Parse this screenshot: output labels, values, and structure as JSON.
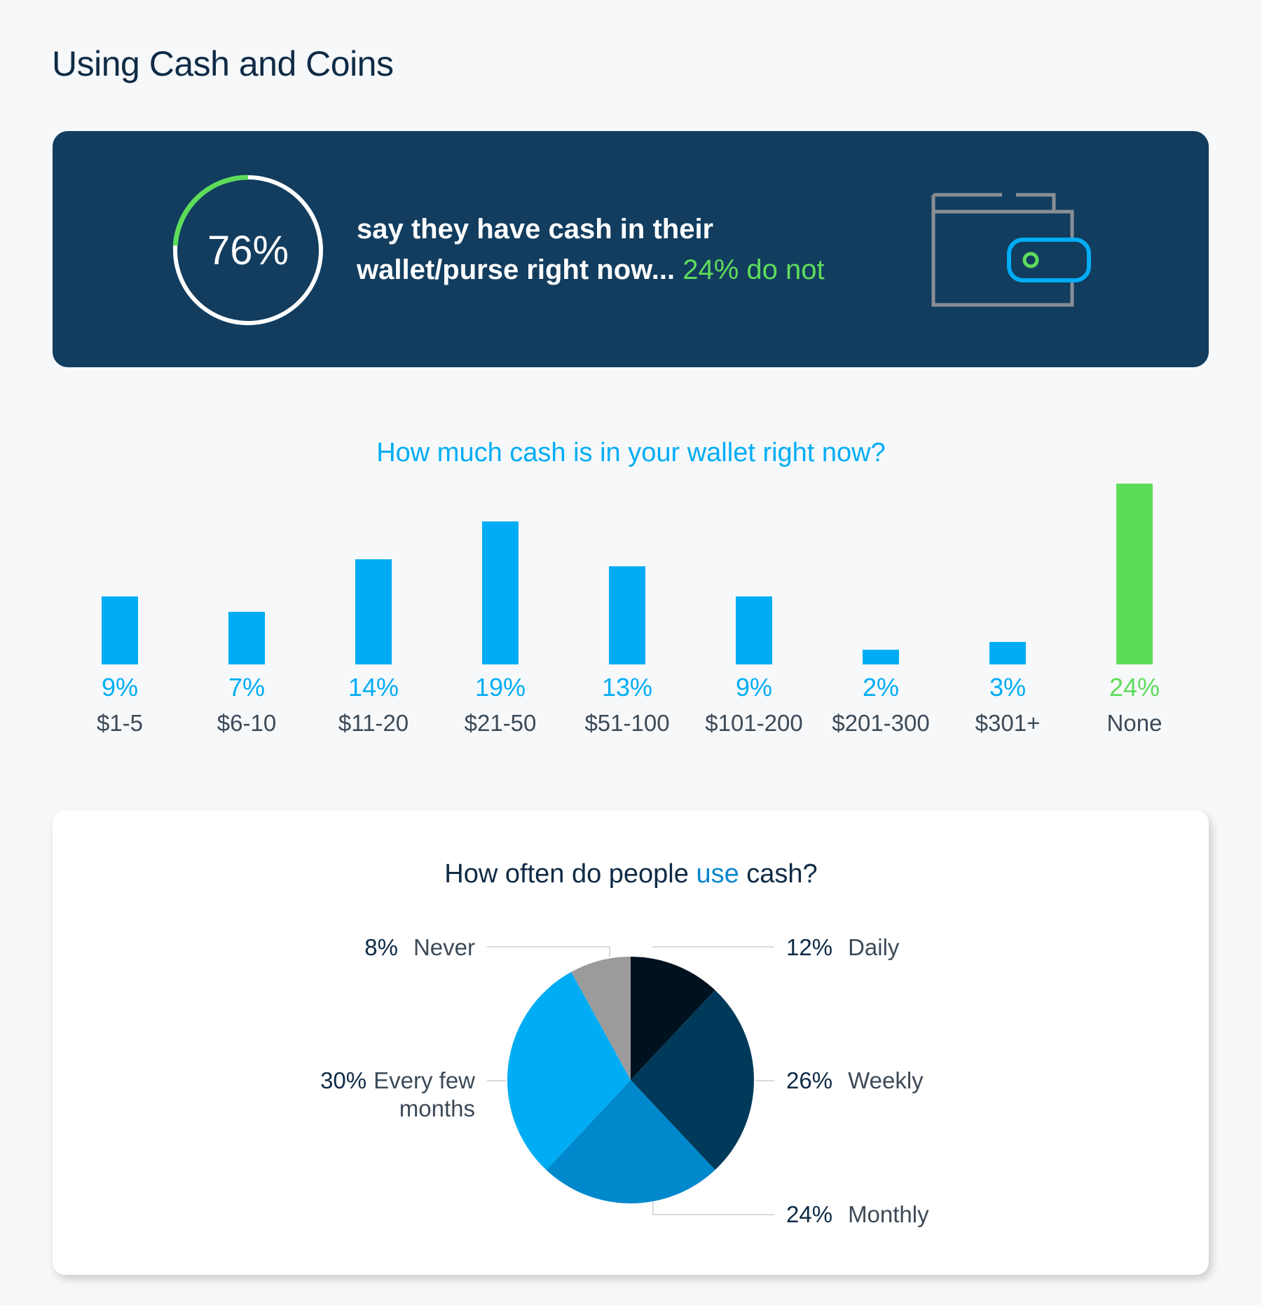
{
  "page": {
    "title": "Using Cash and Coins"
  },
  "banner": {
    "value": "76%",
    "percent": 76,
    "text": "say they have cash in their wallet/purse right now...",
    "line1": "say they have cash in their",
    "line2": "wallet/purse right now...",
    "accent": "24% do not",
    "ring_color": "#5ddc5a",
    "background": "#123d5f"
  },
  "chart_data": [
    {
      "type": "bar",
      "title": "How much cash is in your wallet right now?",
      "categories": [
        "$1-5",
        "$6-10",
        "$11-20",
        "$21-50",
        "$51-100",
        "$101-200",
        "$201-300",
        "$301+",
        "None"
      ],
      "values": [
        9,
        7,
        14,
        19,
        13,
        9,
        2,
        3,
        24
      ],
      "value_labels": [
        "9%",
        "7%",
        "14%",
        "19%",
        "13%",
        "9%",
        "2%",
        "3%",
        "24%"
      ],
      "colors": [
        "#00adf5",
        "#00adf5",
        "#00adf5",
        "#00adf5",
        "#00adf5",
        "#00adf5",
        "#00adf5",
        "#00adf5",
        "#5ddc5a"
      ],
      "unit": "%"
    },
    {
      "type": "pie",
      "title_parts": [
        "How often do people ",
        "use",
        " cash?"
      ],
      "slices": [
        {
          "label": "Daily",
          "value": 12,
          "value_label": "12%",
          "color": "#00111f"
        },
        {
          "label": "Weekly",
          "value": 26,
          "value_label": "26%",
          "color": "#003a5a"
        },
        {
          "label": "Monthly",
          "value": 24,
          "value_label": "24%",
          "color": "#0088cd"
        },
        {
          "label": "Every few months",
          "value": 30,
          "value_label": "30%",
          "color": "#00adf5"
        },
        {
          "label": "Never",
          "value": 8,
          "value_label": "8%",
          "color": "#9b9b9b"
        }
      ]
    }
  ]
}
